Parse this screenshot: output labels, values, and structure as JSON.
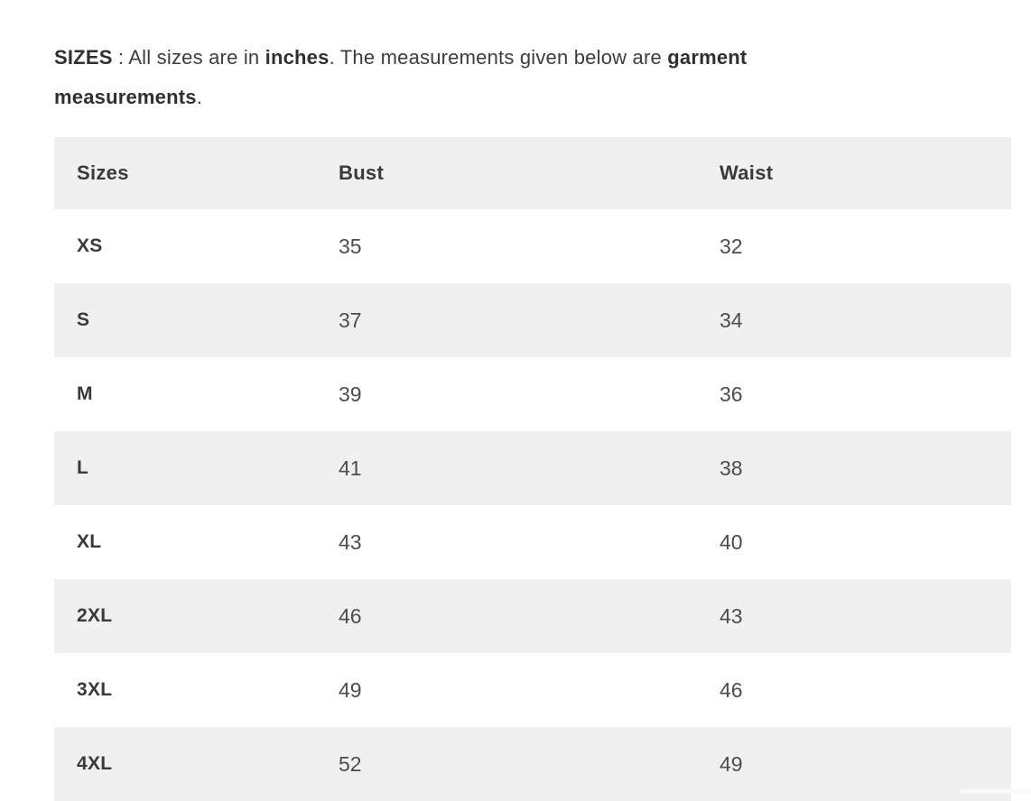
{
  "intro": {
    "bold_lead": "SIZES",
    "sep": " : ",
    "text_1": "All sizes are in ",
    "bold_1": "inches",
    "text_2": ". The measurements given below are ",
    "bold_2": "garment measurements",
    "text_3": "."
  },
  "colors": {
    "row_alt_background": "#f0f0f0",
    "heading_text": "#3a3a3a",
    "value_text": "#4d4d4d"
  },
  "table": {
    "headers": [
      "Sizes",
      "Bust",
      "Waist"
    ],
    "rows": [
      {
        "size": "XS",
        "bust": "35",
        "waist": "32"
      },
      {
        "size": "S",
        "bust": "37",
        "waist": "34"
      },
      {
        "size": "M",
        "bust": "39",
        "waist": "36"
      },
      {
        "size": "L",
        "bust": "41",
        "waist": "38"
      },
      {
        "size": "XL",
        "bust": "43",
        "waist": "40"
      },
      {
        "size": "2XL",
        "bust": "46",
        "waist": "43"
      },
      {
        "size": "3XL",
        "bust": "49",
        "waist": "46"
      },
      {
        "size": "4XL",
        "bust": "52",
        "waist": "49"
      }
    ]
  },
  "chart_data": {
    "type": "table",
    "columns": [
      "Sizes",
      "Bust",
      "Waist"
    ],
    "rows": [
      [
        "XS",
        35,
        32
      ],
      [
        "S",
        37,
        34
      ],
      [
        "M",
        39,
        36
      ],
      [
        "L",
        41,
        38
      ],
      [
        "XL",
        43,
        40
      ],
      [
        "2XL",
        46,
        43
      ],
      [
        "3XL",
        49,
        46
      ],
      [
        "4XL",
        52,
        49
      ]
    ],
    "units": "inches"
  }
}
